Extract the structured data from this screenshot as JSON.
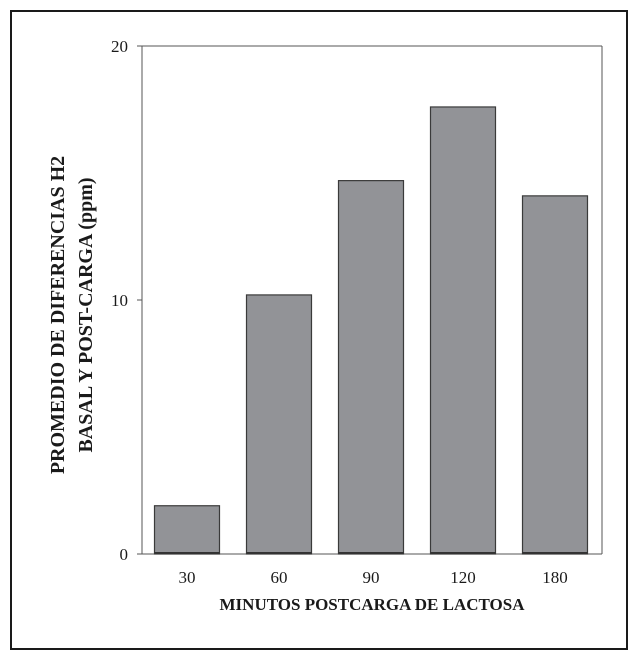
{
  "chart_data": {
    "type": "bar",
    "categories": [
      "30",
      "60",
      "90",
      "120",
      "180"
    ],
    "values": [
      1.9,
      10.2,
      14.7,
      17.6,
      14.1
    ],
    "xlabel": "MINUTOS POSTCARGA DE LACTOSA",
    "ylabel_lines": [
      "PROMEDIO DE DIFERENCIAS H2",
      "BASAL Y POST-CARGA (ppm)"
    ],
    "ylim": [
      0,
      20
    ],
    "yticks": [
      0,
      10,
      20
    ],
    "grid": false,
    "bar_color": "#929397",
    "bar_edge_color": "#3a3a3a",
    "baseline_color": "#333333"
  }
}
